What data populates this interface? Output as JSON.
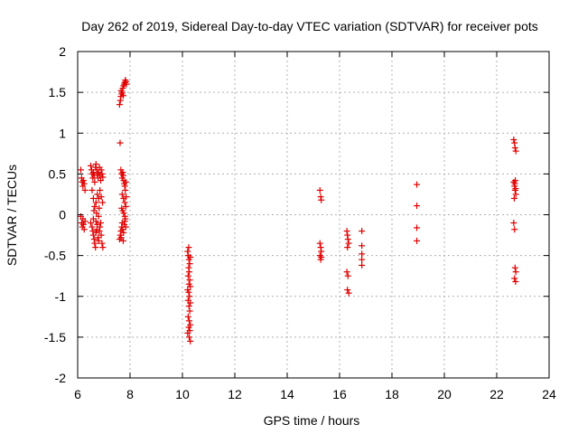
{
  "chart_data": {
    "type": "scatter",
    "title": "Day 262 of 2019, Sidereal Day-to-day VTEC variation (SDTVAR) for receiver pots",
    "xlabel": "GPS time / hours",
    "ylabel": "SDTVAR / TECUs",
    "xlim": [
      6,
      24
    ],
    "ylim": [
      -2,
      2
    ],
    "xticks": [
      6,
      8,
      10,
      12,
      14,
      16,
      18,
      20,
      22,
      24
    ],
    "xtick_labels": [
      "6",
      "8",
      "10",
      "12",
      "14",
      "16",
      "18",
      "20",
      "22",
      "24"
    ],
    "yticks": [
      2,
      1.5,
      1,
      0.5,
      0,
      -0.5,
      -1,
      -1.5,
      -2
    ],
    "ytick_labels": [
      "2",
      "1.5",
      "1",
      "0.5",
      "0",
      "-0.5",
      "-1",
      "-1.5",
      "-2"
    ],
    "grid": true,
    "marker": "+",
    "color": "#e00000",
    "series": [
      {
        "name": "SDTVAR",
        "points": [
          [
            6.12,
            0.55
          ],
          [
            6.15,
            0.45
          ],
          [
            6.17,
            0.4
          ],
          [
            6.2,
            0.35
          ],
          [
            6.22,
            0.42
          ],
          [
            6.25,
            0.38
          ],
          [
            6.28,
            0.3
          ],
          [
            6.12,
            -0.02
          ],
          [
            6.15,
            -0.1
          ],
          [
            6.18,
            -0.15
          ],
          [
            6.2,
            -0.05
          ],
          [
            6.22,
            -0.12
          ],
          [
            6.25,
            -0.18
          ],
          [
            6.28,
            -0.08
          ],
          [
            6.5,
            0.6
          ],
          [
            6.53,
            0.55
          ],
          [
            6.55,
            0.5
          ],
          [
            6.58,
            0.45
          ],
          [
            6.6,
            0.52
          ],
          [
            6.63,
            0.48
          ],
          [
            6.65,
            0.4
          ],
          [
            6.68,
            0.58
          ],
          [
            6.7,
            0.62
          ],
          [
            6.73,
            0.55
          ],
          [
            6.75,
            0.5
          ],
          [
            6.78,
            0.45
          ],
          [
            6.8,
            0.52
          ],
          [
            6.83,
            0.58
          ],
          [
            6.85,
            0.48
          ],
          [
            6.88,
            0.42
          ],
          [
            6.9,
            0.55
          ],
          [
            6.93,
            0.5
          ],
          [
            6.96,
            0.46
          ],
          [
            6.55,
            0.3
          ],
          [
            6.6,
            0.2
          ],
          [
            6.65,
            0.1
          ],
          [
            6.7,
            0.15
          ],
          [
            6.75,
            0.25
          ],
          [
            6.8,
            0.2
          ],
          [
            6.85,
            0.3
          ],
          [
            6.9,
            0.22
          ],
          [
            6.95,
            0.15
          ],
          [
            6.62,
            0.05
          ],
          [
            6.72,
            0.02
          ],
          [
            6.82,
            0.08
          ],
          [
            6.5,
            -0.1
          ],
          [
            6.55,
            -0.15
          ],
          [
            6.58,
            -0.2
          ],
          [
            6.6,
            -0.25
          ],
          [
            6.63,
            -0.3
          ],
          [
            6.65,
            -0.35
          ],
          [
            6.68,
            -0.4
          ],
          [
            6.7,
            -0.22
          ],
          [
            6.73,
            -0.18
          ],
          [
            6.75,
            -0.12
          ],
          [
            6.78,
            -0.28
          ],
          [
            6.8,
            -0.32
          ],
          [
            6.83,
            -0.2
          ],
          [
            6.85,
            -0.15
          ],
          [
            6.88,
            -0.1
          ],
          [
            6.9,
            -0.25
          ],
          [
            6.93,
            -0.35
          ],
          [
            6.96,
            -0.4
          ],
          [
            6.6,
            -0.05
          ],
          [
            6.7,
            -0.08
          ],
          [
            6.8,
            -0.02
          ],
          [
            7.6,
            1.35
          ],
          [
            7.63,
            1.4
          ],
          [
            7.65,
            1.45
          ],
          [
            7.68,
            1.48
          ],
          [
            7.7,
            1.5
          ],
          [
            7.72,
            1.55
          ],
          [
            7.75,
            1.58
          ],
          [
            7.78,
            1.6
          ],
          [
            7.8,
            1.62
          ],
          [
            7.82,
            1.65
          ],
          [
            7.84,
            1.63
          ],
          [
            7.86,
            1.6
          ],
          [
            7.66,
            1.52
          ],
          [
            7.74,
            1.46
          ],
          [
            7.62,
            0.88
          ],
          [
            7.65,
            0.55
          ],
          [
            7.68,
            0.5
          ],
          [
            7.7,
            0.45
          ],
          [
            7.72,
            0.52
          ],
          [
            7.74,
            0.48
          ],
          [
            7.76,
            0.42
          ],
          [
            7.78,
            0.38
          ],
          [
            7.8,
            0.35
          ],
          [
            7.82,
            0.3
          ],
          [
            7.84,
            0.4
          ],
          [
            7.7,
            0.25
          ],
          [
            7.75,
            0.2
          ],
          [
            7.8,
            0.15
          ],
          [
            7.85,
            0.22
          ],
          [
            7.68,
            0.08
          ],
          [
            7.72,
            0.05
          ],
          [
            7.76,
            0.02
          ],
          [
            7.8,
            -0.02
          ],
          [
            7.84,
            0.1
          ],
          [
            7.6,
            -0.3
          ],
          [
            7.63,
            -0.25
          ],
          [
            7.65,
            -0.2
          ],
          [
            7.68,
            -0.15
          ],
          [
            7.7,
            -0.1
          ],
          [
            7.72,
            -0.18
          ],
          [
            7.75,
            -0.22
          ],
          [
            7.78,
            -0.12
          ],
          [
            7.8,
            -0.08
          ],
          [
            7.82,
            -0.05
          ],
          [
            7.84,
            -0.15
          ],
          [
            7.66,
            -0.28
          ],
          [
            7.74,
            -0.32
          ],
          [
            10.2,
            -0.45
          ],
          [
            10.22,
            -0.5
          ],
          [
            10.25,
            -0.55
          ],
          [
            10.28,
            -0.6
          ],
          [
            10.3,
            -0.52
          ],
          [
            10.24,
            -0.65
          ],
          [
            10.26,
            -0.7
          ],
          [
            10.22,
            -0.75
          ],
          [
            10.28,
            -0.8
          ],
          [
            10.25,
            -0.85
          ],
          [
            10.3,
            -0.88
          ],
          [
            10.2,
            -0.92
          ],
          [
            10.24,
            -0.95
          ],
          [
            10.27,
            -1.0
          ],
          [
            10.22,
            -1.05
          ],
          [
            10.3,
            -1.08
          ],
          [
            10.25,
            -1.12
          ],
          [
            10.28,
            -1.18
          ],
          [
            10.22,
            -1.25
          ],
          [
            10.26,
            -1.3
          ],
          [
            10.3,
            -1.35
          ],
          [
            10.24,
            -1.38
          ],
          [
            10.28,
            -1.42
          ],
          [
            10.2,
            -1.45
          ],
          [
            10.26,
            -1.5
          ],
          [
            10.3,
            -1.55
          ],
          [
            10.24,
            -0.4
          ],
          [
            15.25,
            0.3
          ],
          [
            15.28,
            0.22
          ],
          [
            15.3,
            0.18
          ],
          [
            15.25,
            -0.35
          ],
          [
            15.28,
            -0.4
          ],
          [
            15.3,
            -0.45
          ],
          [
            15.25,
            -0.5
          ],
          [
            15.28,
            -0.55
          ],
          [
            15.3,
            -0.52
          ],
          [
            16.28,
            -0.2
          ],
          [
            16.3,
            -0.25
          ],
          [
            16.32,
            -0.3
          ],
          [
            16.35,
            -0.35
          ],
          [
            16.3,
            -0.4
          ],
          [
            16.28,
            -0.7
          ],
          [
            16.32,
            -0.75
          ],
          [
            16.3,
            -0.92
          ],
          [
            16.35,
            -0.96
          ],
          [
            16.85,
            -0.2
          ],
          [
            16.85,
            -0.38
          ],
          [
            16.85,
            -0.48
          ],
          [
            16.85,
            -0.55
          ],
          [
            16.85,
            -0.62
          ],
          [
            18.95,
            0.37
          ],
          [
            18.95,
            0.11
          ],
          [
            18.95,
            -0.16
          ],
          [
            18.95,
            -0.32
          ],
          [
            22.65,
            0.92
          ],
          [
            22.68,
            0.88
          ],
          [
            22.7,
            0.82
          ],
          [
            22.73,
            0.78
          ],
          [
            22.65,
            0.4
          ],
          [
            22.68,
            0.35
          ],
          [
            22.7,
            0.3
          ],
          [
            22.73,
            0.25
          ],
          [
            22.67,
            0.2
          ],
          [
            22.71,
            0.42
          ],
          [
            22.69,
            0.38
          ],
          [
            22.72,
            0.32
          ],
          [
            22.65,
            -0.1
          ],
          [
            22.68,
            -0.18
          ],
          [
            22.7,
            -0.65
          ],
          [
            22.73,
            -0.7
          ],
          [
            22.68,
            -0.78
          ],
          [
            22.72,
            -0.82
          ]
        ]
      }
    ]
  }
}
